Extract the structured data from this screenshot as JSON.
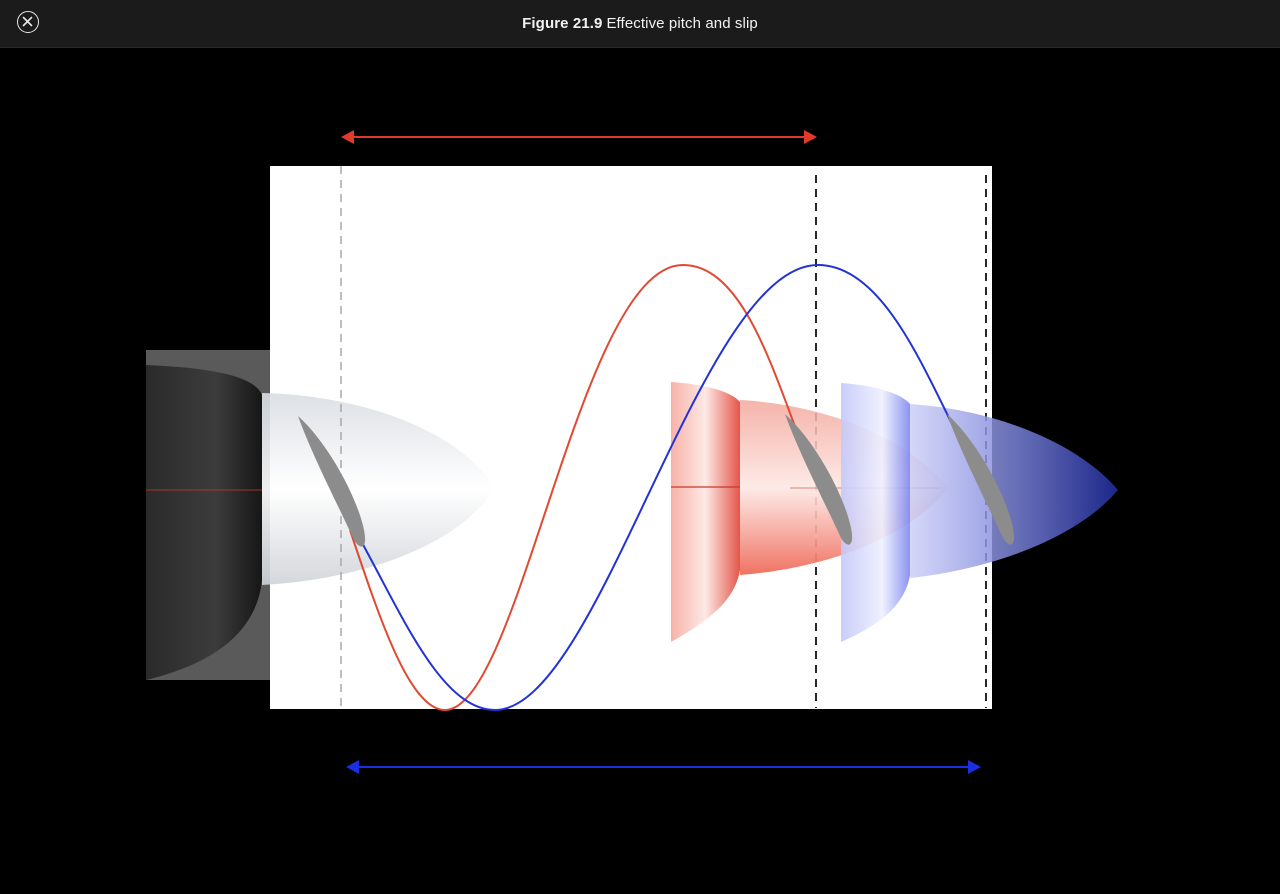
{
  "header": {
    "figure_number": "Figure 21.9",
    "figure_title": "Effective pitch and slip"
  },
  "icons": {
    "close": "close-circle-icon"
  },
  "colors": {
    "top_bar": "#1b1b1b",
    "background": "#000000",
    "red_arrow": "#e23a2a",
    "blue_arrow": "#1a2fe0",
    "red_wave": "#e04a32",
    "blue_wave": "#2233d6",
    "blade": "#8c8c8c"
  }
}
